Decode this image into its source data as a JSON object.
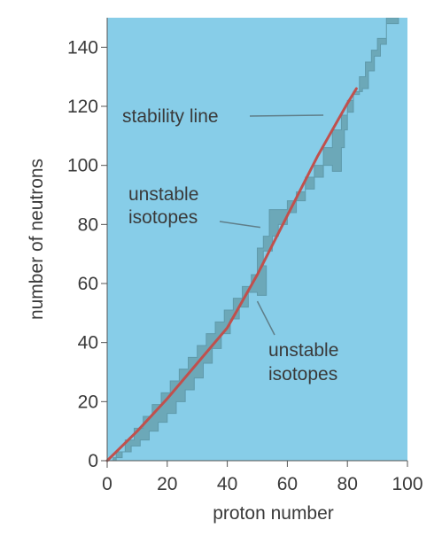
{
  "chart_data": {
    "type": "area",
    "xlabel": "proton number",
    "ylabel": "number of neutrons",
    "xlim": [
      0,
      100
    ],
    "ylim": [
      0,
      150
    ],
    "x_ticks": [
      0,
      20,
      40,
      60,
      80,
      100
    ],
    "y_ticks": [
      0,
      20,
      40,
      60,
      80,
      100,
      120,
      140
    ],
    "grid": false,
    "colors": {
      "background": "#87cde8",
      "band": "#6ca8b8",
      "line": "#c0504d",
      "text": "#3a3a3a",
      "leader": "#5f7e89"
    },
    "series": [
      {
        "type": "band",
        "upper": [
          [
            0,
            0
          ],
          [
            3,
            3
          ],
          [
            6,
            7
          ],
          [
            9,
            11
          ],
          [
            12,
            15
          ],
          [
            15,
            19
          ],
          [
            18,
            23
          ],
          [
            21,
            27
          ],
          [
            24,
            31
          ],
          [
            27,
            35
          ],
          [
            30,
            39
          ],
          [
            33,
            43
          ],
          [
            36,
            47
          ],
          [
            39,
            51
          ],
          [
            42,
            55
          ],
          [
            45,
            59
          ],
          [
            48,
            63
          ],
          [
            50,
            72
          ],
          [
            52,
            76
          ],
          [
            54,
            85
          ],
          [
            57,
            85
          ],
          [
            60,
            88
          ],
          [
            63,
            91
          ],
          [
            66,
            96
          ],
          [
            69,
            100
          ],
          [
            72,
            106
          ],
          [
            75,
            112
          ],
          [
            78,
            117
          ],
          [
            80,
            122
          ],
          [
            82,
            125
          ],
          [
            85,
            126
          ],
          [
            87,
            132
          ],
          [
            89,
            137
          ],
          [
            91,
            141
          ],
          [
            93,
            148
          ],
          [
            97,
            150
          ]
        ],
        "lower": [
          [
            97,
            150
          ],
          [
            93,
            143
          ],
          [
            90,
            139
          ],
          [
            88,
            135
          ],
          [
            86,
            130
          ],
          [
            84,
            124
          ],
          [
            82,
            118
          ],
          [
            80,
            112
          ],
          [
            79,
            106
          ],
          [
            78,
            98
          ],
          [
            75,
            100
          ],
          [
            72,
            96
          ],
          [
            69,
            92
          ],
          [
            66,
            88
          ],
          [
            63,
            84
          ],
          [
            60,
            80
          ],
          [
            57,
            76
          ],
          [
            55,
            71
          ],
          [
            52,
            66
          ],
          [
            53,
            56
          ],
          [
            50,
            57
          ],
          [
            47,
            52
          ],
          [
            44,
            48
          ],
          [
            41,
            43
          ],
          [
            38,
            38
          ],
          [
            35,
            33
          ],
          [
            32,
            28
          ],
          [
            29,
            24
          ],
          [
            26,
            20
          ],
          [
            23,
            16
          ],
          [
            20,
            13
          ],
          [
            17,
            10
          ],
          [
            14,
            7
          ],
          [
            11,
            5
          ],
          [
            8,
            3
          ],
          [
            5,
            1
          ],
          [
            2,
            0
          ],
          [
            0,
            0
          ]
        ]
      },
      {
        "type": "line",
        "points": [
          [
            0,
            0
          ],
          [
            10,
            10
          ],
          [
            20,
            21
          ],
          [
            30,
            33
          ],
          [
            40,
            45
          ],
          [
            50,
            63
          ],
          [
            60,
            83
          ],
          [
            70,
            103
          ],
          [
            80,
            121
          ],
          [
            83,
            126
          ]
        ]
      }
    ],
    "annotations": [
      {
        "text": "stability line",
        "x": 72,
        "y": 117
      },
      {
        "lines": [
          "unstable",
          "isotopes"
        ],
        "x": 51,
        "y": 79
      },
      {
        "lines": [
          "unstable",
          "isotopes"
        ],
        "x": 50,
        "y": 54
      }
    ]
  }
}
